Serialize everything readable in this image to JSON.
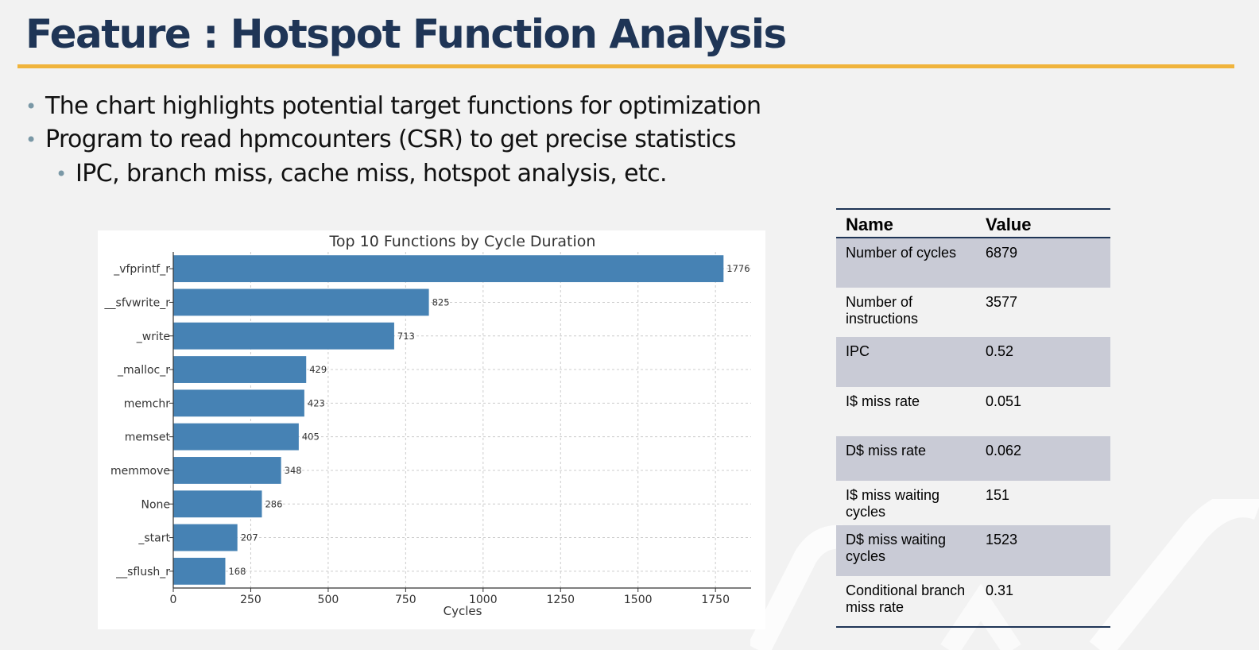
{
  "slide": {
    "title": "Feature : Hotspot Function Analysis",
    "bullets": [
      "The chart highlights potential target functions for optimization",
      "Program to read hpmcounters (CSR) to get precise statistics",
      "IPC, branch miss, cache miss, hotspot analysis, etc."
    ]
  },
  "table": {
    "headers": [
      "Name",
      "Value"
    ],
    "rows": [
      {
        "name": "Number of cycles",
        "value": "6879"
      },
      {
        "name": "Number of instructions",
        "value": "3577"
      },
      {
        "name": "IPC",
        "value": "0.52"
      },
      {
        "name": "I$ miss rate",
        "value": "0.051"
      },
      {
        "name": "D$ miss rate",
        "value": "0.062"
      },
      {
        "name": "I$ miss waiting cycles",
        "value": "151"
      },
      {
        "name": "D$ miss waiting cycles",
        "value": "1523"
      },
      {
        "name": "Conditional branch miss rate",
        "value": "0.31"
      }
    ]
  },
  "chart_data": {
    "type": "bar",
    "orientation": "horizontal",
    "title": "Top 10 Functions by Cycle Duration",
    "xlabel": "Cycles",
    "ylabel": "",
    "categories": [
      "_vfprintf_r",
      "__sfvwrite_r",
      "_write",
      "_malloc_r",
      "memchr",
      "memset",
      "memmove",
      "None",
      "_start",
      "__sflush_r"
    ],
    "values": [
      1776,
      825,
      713,
      429,
      423,
      405,
      348,
      286,
      207,
      168
    ],
    "xticks": [
      0,
      250,
      500,
      750,
      1000,
      1250,
      1500,
      1750
    ],
    "xlim": [
      0,
      1865
    ],
    "grid": true,
    "bar_color": "#4682b4",
    "data_labels": true
  },
  "colors": {
    "title": "#1f3556",
    "accent_rule": "#f0b43c",
    "bullet_dot": "#7a98a6",
    "table_shade": "#c9cbd6",
    "table_rule": "#1f3556"
  }
}
